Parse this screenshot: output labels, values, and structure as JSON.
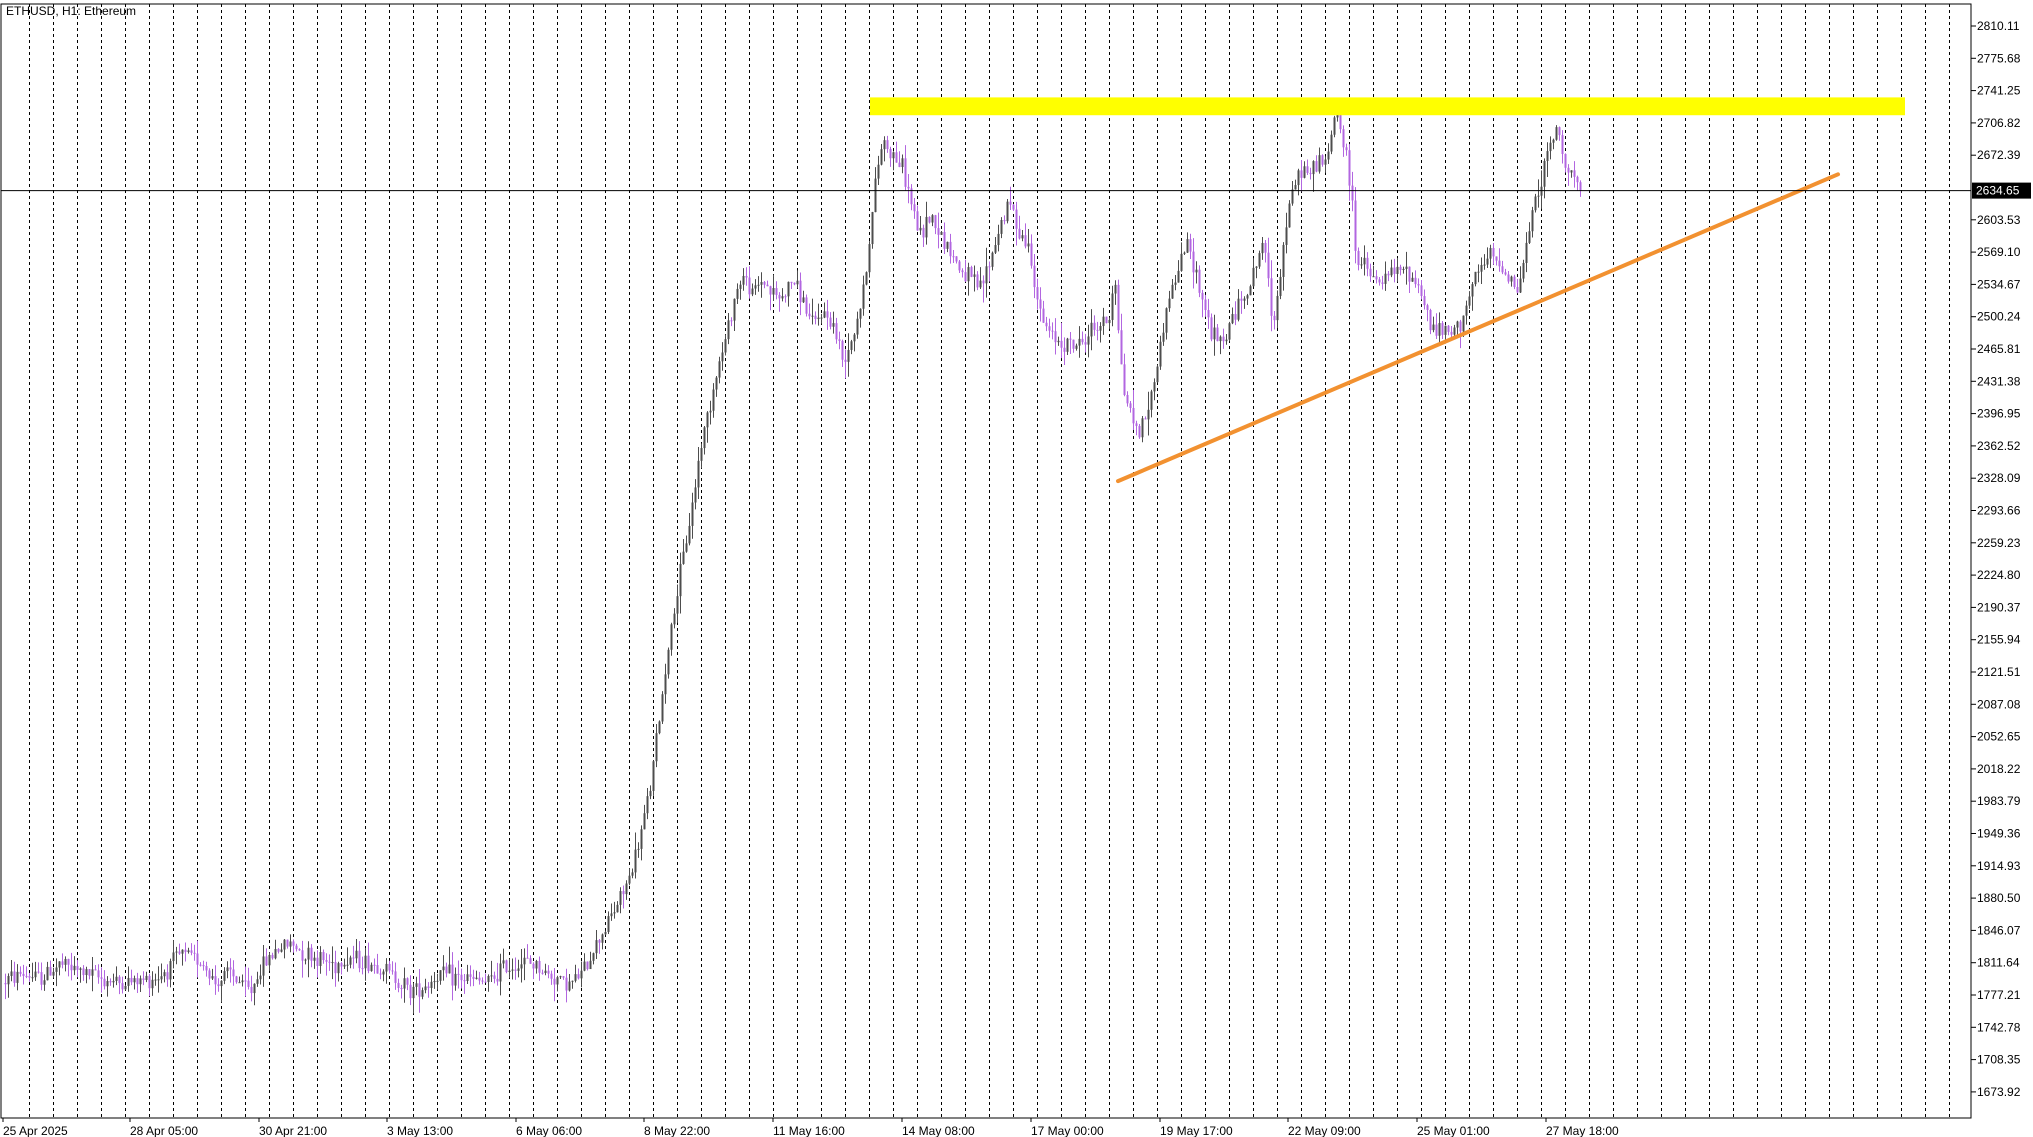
{
  "header": {
    "symbol_label": "ETHUSD, H1:  Ethereum"
  },
  "colors": {
    "background": "#ffffff",
    "grid": "#000000",
    "bull": "#4d4d4d",
    "bear": "#b266e0",
    "resistance_zone": "#ffff00",
    "trendline": "#f29130",
    "text": "#000000",
    "current_price_box": "#000000",
    "current_price_text": "#ffffff"
  },
  "chart_data": {
    "type": "candlestick",
    "title": "ETHUSD, H1:  Ethereum",
    "ylim": [
      1650,
      2825
    ],
    "y_ticks": [
      2810.11,
      2775.68,
      2741.25,
      2706.82,
      2672.39,
      2603.53,
      2569.1,
      2534.67,
      2500.24,
      2465.81,
      2431.38,
      2396.95,
      2362.52,
      2328.09,
      2293.66,
      2259.23,
      2224.8,
      2190.37,
      2155.94,
      2121.51,
      2087.08,
      2052.65,
      2018.22,
      1983.79,
      1949.36,
      1914.93,
      1880.5,
      1846.07,
      1811.64,
      1777.21,
      1742.78,
      1708.35,
      1673.92
    ],
    "x_labels": [
      "25 Apr 2025",
      "28 Apr 05:00",
      "30 Apr 21:00",
      "3 May 13:00",
      "6 May 06:00",
      "8 May 22:00",
      "11 May 16:00",
      "14 May 08:00",
      "17 May 00:00",
      "19 May 17:00",
      "22 May 09:00",
      "25 May 01:00",
      "27 May 18:00"
    ],
    "current_price": 2634.65,
    "price_path": [
      [
        0,
        1790
      ],
      [
        20,
        1800
      ],
      [
        40,
        1795
      ],
      [
        60,
        1810
      ],
      [
        80,
        1802
      ],
      [
        100,
        1795
      ],
      [
        120,
        1790
      ],
      [
        140,
        1792
      ],
      [
        160,
        1798
      ],
      [
        180,
        1820
      ],
      [
        200,
        1815
      ],
      [
        215,
        1790
      ],
      [
        230,
        1800
      ],
      [
        250,
        1780
      ],
      [
        260,
        1805
      ],
      [
        275,
        1825
      ],
      [
        290,
        1832
      ],
      [
        305,
        1822
      ],
      [
        320,
        1815
      ],
      [
        335,
        1810
      ],
      [
        350,
        1818
      ],
      [
        365,
        1812
      ],
      [
        380,
        1808
      ],
      [
        395,
        1796
      ],
      [
        410,
        1782
      ],
      [
        425,
        1788
      ],
      [
        440,
        1800
      ],
      [
        455,
        1796
      ],
      [
        470,
        1793
      ],
      [
        490,
        1790
      ],
      [
        500,
        1805
      ],
      [
        510,
        1808
      ],
      [
        520,
        1812
      ],
      [
        535,
        1810
      ],
      [
        545,
        1800
      ],
      [
        555,
        1796
      ],
      [
        570,
        1789
      ],
      [
        582,
        1800
      ],
      [
        595,
        1830
      ],
      [
        610,
        1860
      ],
      [
        620,
        1880
      ],
      [
        630,
        1905
      ],
      [
        640,
        1945
      ],
      [
        650,
        2000
      ],
      [
        660,
        2080
      ],
      [
        668,
        2150
      ],
      [
        676,
        2200
      ],
      [
        684,
        2250
      ],
      [
        692,
        2300
      ],
      [
        700,
        2360
      ],
      [
        708,
        2400
      ],
      [
        716,
        2440
      ],
      [
        724,
        2470
      ],
      [
        734,
        2520
      ],
      [
        742,
        2545
      ],
      [
        752,
        2525
      ],
      [
        762,
        2540
      ],
      [
        772,
        2525
      ],
      [
        782,
        2520
      ],
      [
        792,
        2540
      ],
      [
        802,
        2520
      ],
      [
        812,
        2490
      ],
      [
        822,
        2505
      ],
      [
        832,
        2495
      ],
      [
        842,
        2455
      ],
      [
        852,
        2480
      ],
      [
        862,
        2520
      ],
      [
        870,
        2590
      ],
      [
        876,
        2650
      ],
      [
        882,
        2690
      ],
      [
        888,
        2680
      ],
      [
        895,
        2670
      ],
      [
        902,
        2660
      ],
      [
        910,
        2625
      ],
      [
        920,
        2585
      ],
      [
        930,
        2610
      ],
      [
        940,
        2590
      ],
      [
        950,
        2570
      ],
      [
        960,
        2550
      ],
      [
        970,
        2540
      ],
      [
        980,
        2530
      ],
      [
        990,
        2560
      ],
      [
        1000,
        2600
      ],
      [
        1010,
        2620
      ],
      [
        1020,
        2590
      ],
      [
        1030,
        2570
      ],
      [
        1040,
        2500
      ],
      [
        1050,
        2480
      ],
      [
        1060,
        2475
      ],
      [
        1070,
        2470
      ],
      [
        1080,
        2470
      ],
      [
        1090,
        2485
      ],
      [
        1100,
        2492
      ],
      [
        1110,
        2500
      ],
      [
        1114,
        2560
      ],
      [
        1117,
        2495
      ],
      [
        1124,
        2420
      ],
      [
        1130,
        2400
      ],
      [
        1138,
        2375
      ],
      [
        1145,
        2395
      ],
      [
        1152,
        2420
      ],
      [
        1160,
        2470
      ],
      [
        1168,
        2520
      ],
      [
        1178,
        2550
      ],
      [
        1186,
        2580
      ],
      [
        1194,
        2555
      ],
      [
        1202,
        2520
      ],
      [
        1212,
        2480
      ],
      [
        1222,
        2470
      ],
      [
        1232,
        2500
      ],
      [
        1242,
        2520
      ],
      [
        1252,
        2540
      ],
      [
        1262,
        2580
      ],
      [
        1268,
        2540
      ],
      [
        1272,
        2495
      ],
      [
        1278,
        2530
      ],
      [
        1286,
        2600
      ],
      [
        1294,
        2640
      ],
      [
        1302,
        2660
      ],
      [
        1310,
        2650
      ],
      [
        1318,
        2670
      ],
      [
        1326,
        2660
      ],
      [
        1332,
        2700
      ],
      [
        1336,
        2725
      ],
      [
        1342,
        2690
      ],
      [
        1348,
        2655
      ],
      [
        1352,
        2620
      ],
      [
        1356,
        2560
      ],
      [
        1364,
        2555
      ],
      [
        1372,
        2540
      ],
      [
        1380,
        2535
      ],
      [
        1390,
        2545
      ],
      [
        1400,
        2550
      ],
      [
        1410,
        2545
      ],
      [
        1420,
        2530
      ],
      [
        1430,
        2490
      ],
      [
        1440,
        2485
      ],
      [
        1450,
        2480
      ],
      [
        1460,
        2495
      ],
      [
        1470,
        2525
      ],
      [
        1480,
        2550
      ],
      [
        1490,
        2565
      ],
      [
        1500,
        2555
      ],
      [
        1510,
        2545
      ],
      [
        1516,
        2525
      ],
      [
        1522,
        2550
      ],
      [
        1530,
        2600
      ],
      [
        1538,
        2640
      ],
      [
        1546,
        2665
      ],
      [
        1552,
        2690
      ],
      [
        1557,
        2700
      ],
      [
        1562,
        2675
      ],
      [
        1568,
        2660
      ],
      [
        1575,
        2645
      ],
      [
        1580,
        2636
      ]
    ],
    "annotations": [
      {
        "type": "zone",
        "label": "resistance",
        "x0": 870,
        "x1": 1905,
        "y_low": 2715,
        "y_high": 2734
      },
      {
        "type": "trendline",
        "label": "rising support",
        "x0": 1118,
        "y0": 2325,
        "x1": 1838,
        "y1": 2652
      }
    ]
  }
}
